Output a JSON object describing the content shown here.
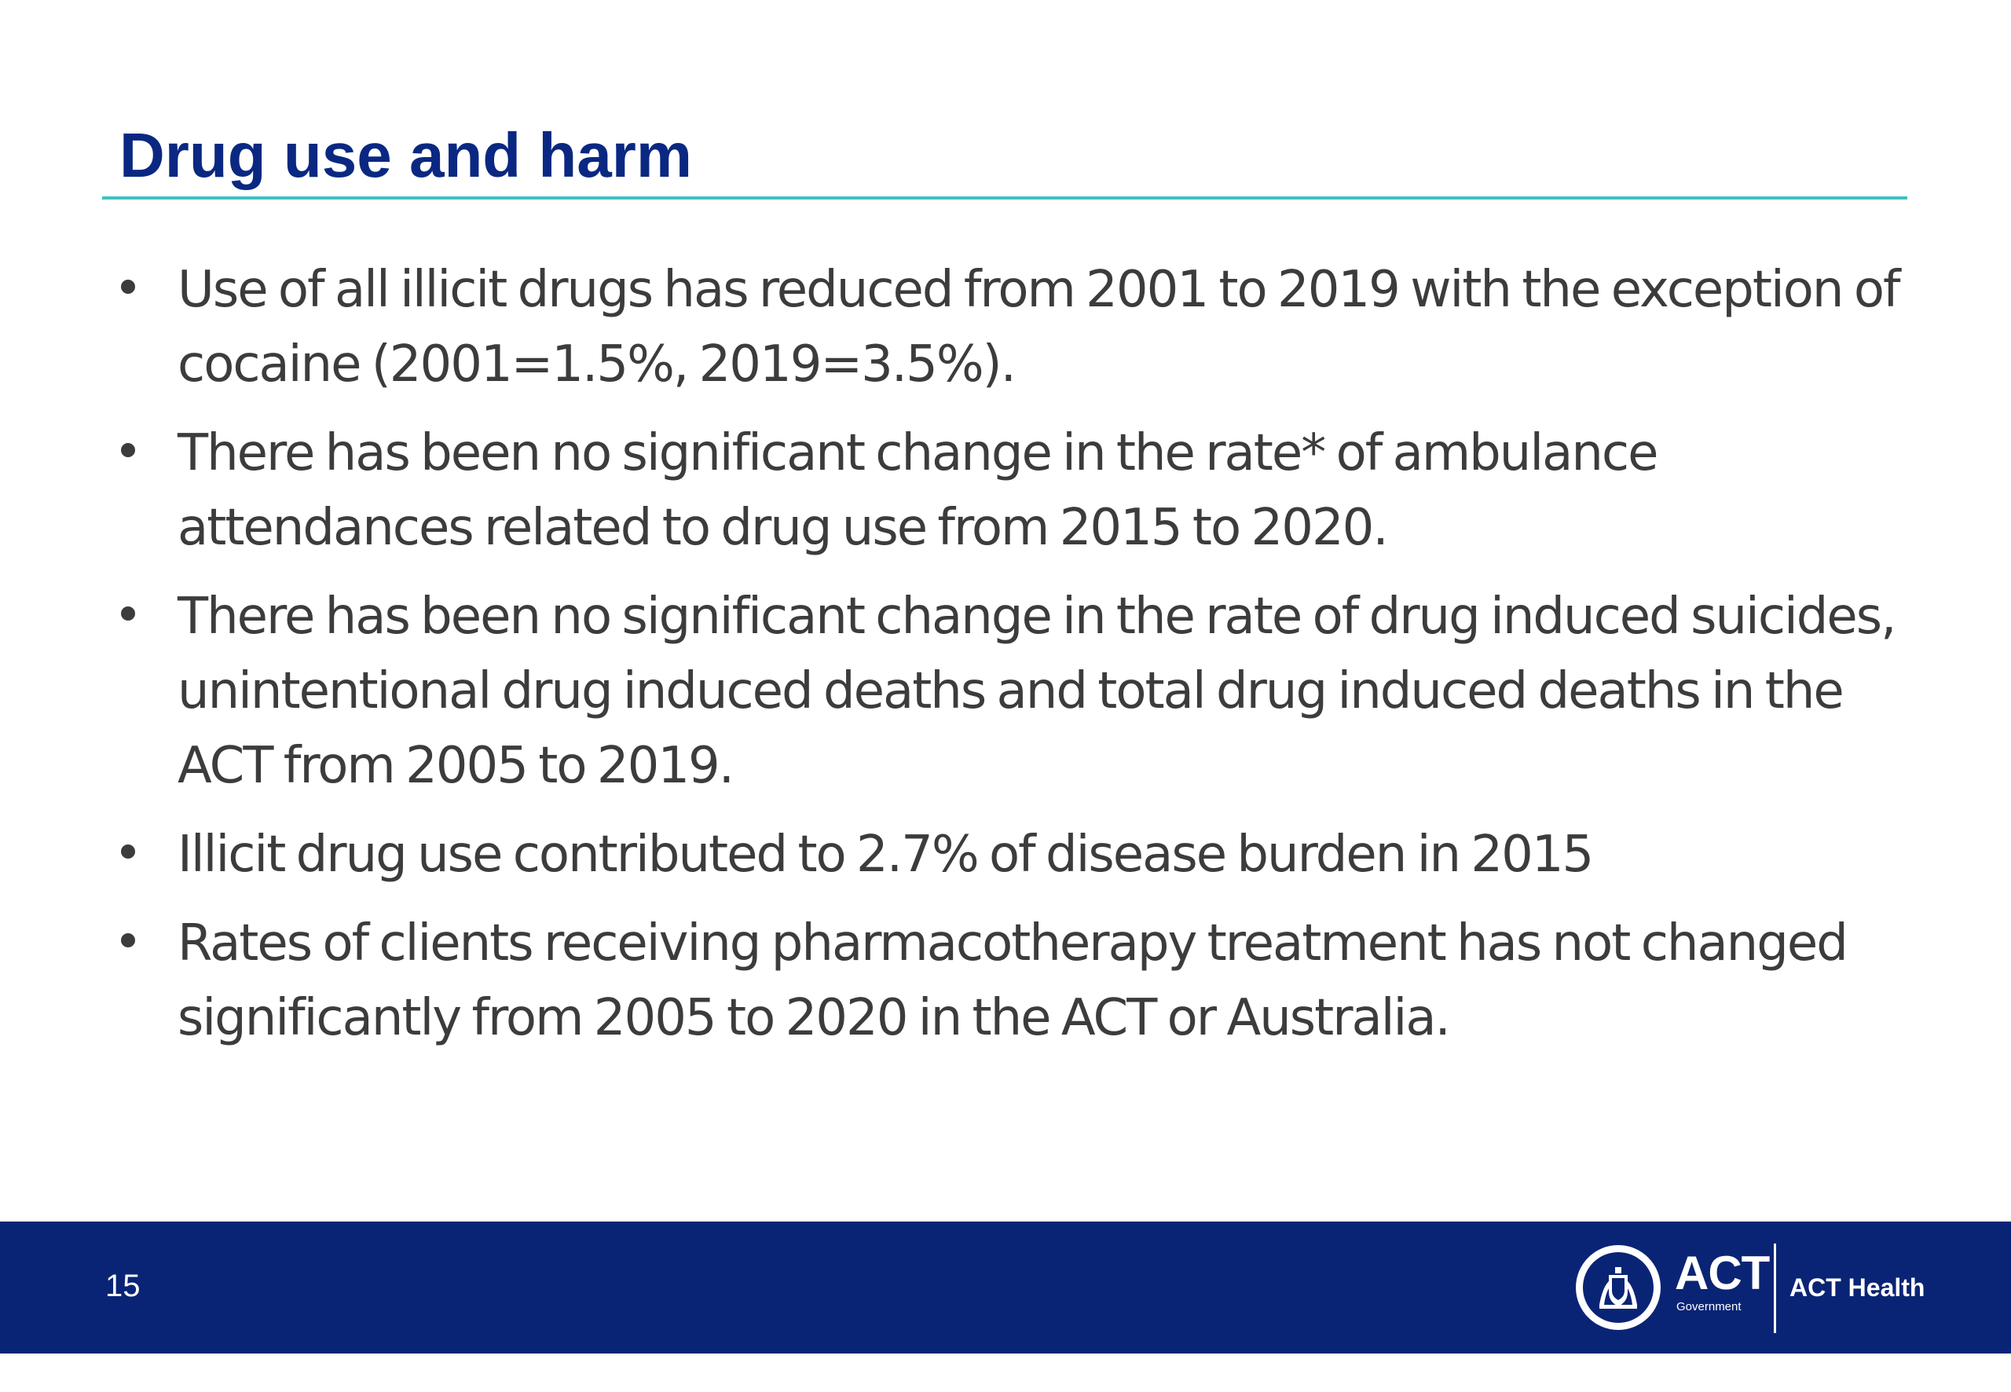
{
  "slide": {
    "title": "Drug use and harm",
    "bullets": [
      "Use of all illicit drugs has reduced from 2001 to 2019 with the exception of cocaine (2001=1.5%, 2019=3.5%).",
      "There has been no significant change in the rate* of ambulance attendances related to drug use from 2015 to 2020.",
      "There has been no significant change in the rate of drug induced suicides, unintentional drug induced deaths and total drug induced deaths in the ACT from 2005 to 2019.",
      "Illicit drug use contributed to 2.7% of disease burden in 2015",
      "Rates of clients receiving pharmacotherapy treatment has not changed significantly from 2005 to 2020 in the ACT or Australia."
    ]
  },
  "footer": {
    "page_number": "15",
    "logo_act": "ACT",
    "logo_government": "Government",
    "logo_health": "ACT Health"
  },
  "colors": {
    "title": "#0a2882",
    "title_rule": "#3fc1c0",
    "body_text": "#3c3c3c",
    "footer_bg": "#0a2475"
  },
  "icons": {
    "crest": "act-coat-of-arms-icon"
  }
}
